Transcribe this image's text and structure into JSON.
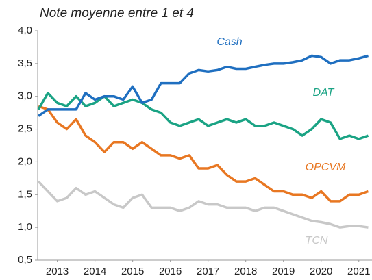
{
  "chart_data": {
    "type": "line",
    "title": "Note moyenne entre 1 et 4",
    "x": [
      2013.0,
      2013.25,
      2013.5,
      2013.75,
      2014.0,
      2014.25,
      2014.5,
      2014.75,
      2015.0,
      2015.25,
      2015.5,
      2015.75,
      2016.0,
      2016.25,
      2016.5,
      2016.75,
      2017.0,
      2017.25,
      2017.5,
      2017.75,
      2018.0,
      2018.25,
      2018.5,
      2018.75,
      2019.0,
      2019.25,
      2019.5,
      2019.75,
      2020.0,
      2020.25,
      2020.5,
      2020.75,
      2021.0,
      2021.25,
      2021.5,
      2021.75
    ],
    "series": [
      {
        "name": "Cash",
        "color": "#1f6fc0",
        "values": [
          2.7,
          2.8,
          2.8,
          2.8,
          2.8,
          3.05,
          2.95,
          3.0,
          3.0,
          2.95,
          3.15,
          2.9,
          2.95,
          3.2,
          3.2,
          3.2,
          3.35,
          3.4,
          3.38,
          3.4,
          3.45,
          3.42,
          3.42,
          3.45,
          3.48,
          3.5,
          3.5,
          3.52,
          3.55,
          3.62,
          3.6,
          3.5,
          3.55,
          3.55,
          3.58,
          3.62
        ]
      },
      {
        "name": "DAT",
        "color": "#1aa384",
        "values": [
          2.8,
          3.05,
          2.9,
          2.85,
          3.0,
          2.85,
          2.9,
          3.0,
          2.85,
          2.9,
          2.95,
          2.9,
          2.8,
          2.75,
          2.6,
          2.55,
          2.6,
          2.65,
          2.55,
          2.6,
          2.65,
          2.6,
          2.65,
          2.55,
          2.55,
          2.6,
          2.55,
          2.5,
          2.4,
          2.5,
          2.65,
          2.6,
          2.35,
          2.4,
          2.35,
          2.4
        ]
      },
      {
        "name": "OPCVM",
        "color": "#e87722",
        "values": [
          2.85,
          2.8,
          2.6,
          2.5,
          2.65,
          2.4,
          2.3,
          2.15,
          2.3,
          2.3,
          2.2,
          2.3,
          2.2,
          2.1,
          2.1,
          2.05,
          2.1,
          1.9,
          1.9,
          1.95,
          1.8,
          1.7,
          1.7,
          1.75,
          1.65,
          1.55,
          1.55,
          1.5,
          1.5,
          1.45,
          1.55,
          1.4,
          1.4,
          1.5,
          1.5,
          1.55
        ]
      },
      {
        "name": "TCN",
        "color": "#c8c8c8",
        "values": [
          1.7,
          1.55,
          1.4,
          1.45,
          1.6,
          1.5,
          1.55,
          1.45,
          1.35,
          1.3,
          1.45,
          1.5,
          1.3,
          1.3,
          1.3,
          1.25,
          1.3,
          1.4,
          1.35,
          1.35,
          1.3,
          1.3,
          1.3,
          1.25,
          1.3,
          1.3,
          1.25,
          1.2,
          1.15,
          1.1,
          1.08,
          1.05,
          1.0,
          1.02,
          1.02,
          1.0
        ]
      }
    ],
    "xlim": [
      2012.98,
      2021.85
    ],
    "xticks": [
      {
        "value": 2013.5,
        "label": "2013"
      },
      {
        "value": 2014.5,
        "label": "2014"
      },
      {
        "value": 2015.5,
        "label": "2015"
      },
      {
        "value": 2016.5,
        "label": "2016"
      },
      {
        "value": 2017.5,
        "label": "2017"
      },
      {
        "value": 2018.5,
        "label": "2018"
      },
      {
        "value": 2019.5,
        "label": "2019"
      },
      {
        "value": 2020.5,
        "label": "2020"
      },
      {
        "value": 2021.5,
        "label": "2021"
      }
    ],
    "ylim": [
      0.5,
      4.0
    ],
    "yticks": [
      {
        "value": 0.5,
        "label": "0,5"
      },
      {
        "value": 1.0,
        "label": "1,0"
      },
      {
        "value": 1.5,
        "label": "1,5"
      },
      {
        "value": 2.0,
        "label": "2,0"
      },
      {
        "value": 2.5,
        "label": "2,5"
      },
      {
        "value": 3.0,
        "label": "3,0"
      },
      {
        "value": 3.5,
        "label": "3,5"
      },
      {
        "value": 4.0,
        "label": "4,0"
      }
    ],
    "grid": false
  }
}
